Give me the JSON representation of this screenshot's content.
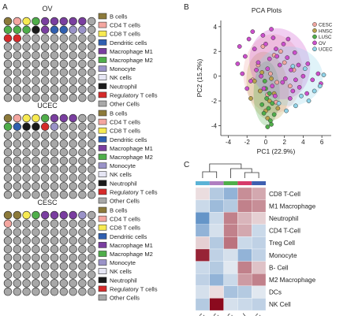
{
  "panel_labels": {
    "a": "A",
    "b": "B",
    "c": "C"
  },
  "cell_type_colors": {
    "B cells": "#8c7a3a",
    "CD4 T cells": "#f4a6a0",
    "CD8 T cells": "#f7ea52",
    "Dendritic cells": "#2f5fb0",
    "Macrophage M1": "#7a3ea0",
    "Macrophage M2": "#4fae4a",
    "Monocyte": "#9a93c8",
    "NK cells": "#e6e6f4",
    "Neutrophil": "#1a1a1a",
    "Regulatory T cells": "#d62a2a",
    "Other Cells": "#a8a8a8"
  },
  "chart_data": [
    {
      "type": "waffle",
      "panel": "A",
      "grid": {
        "rows": 10,
        "cols": 10
      },
      "legend_labels": [
        "B cells",
        "CD4 T cells",
        "CD8 T cells",
        "Dendritic cells",
        "Macrophage M1",
        "Macrophage M2",
        "Monocyte",
        "NK cells",
        "Neutrophil",
        "Regulatory T cells",
        "Other Cells"
      ],
      "waffles": [
        {
          "title": "OV",
          "cells": [
            [
              "B cells",
              "CD4 T cells",
              "CD8 T cells",
              "Macrophage M2",
              "Macrophage M1",
              "Macrophage M1",
              "Macrophage M1",
              "Macrophage M1",
              "Macrophage M1",
              "Other Cells"
            ],
            [
              "Macrophage M2",
              "Macrophage M2",
              "Macrophage M2",
              "Neutrophil",
              "Macrophage M1",
              "Dendritic cells",
              "Dendritic cells",
              "Monocyte",
              "Monocyte",
              "Other Cells"
            ],
            [
              "Regulatory T cells",
              "Regulatory T cells",
              "Other Cells",
              "Other Cells",
              "Other Cells",
              "Other Cells",
              "Other Cells",
              "Other Cells",
              "Other Cells",
              "Other Cells"
            ]
          ]
        },
        {
          "title": "UCEC",
          "cells": [
            [
              "B cells",
              "CD4 T cells",
              "CD8 T cells",
              "CD8 T cells",
              "Macrophage M2",
              "Macrophage M1",
              "Macrophage M1",
              "Macrophage M1",
              "Other Cells",
              "Other Cells"
            ],
            [
              "Macrophage M2",
              "Dendritic cells",
              "Neutrophil",
              "Neutrophil",
              "Regulatory T cells",
              "Monocyte",
              "Other Cells",
              "Other Cells",
              "Other Cells",
              "Other Cells"
            ]
          ]
        },
        {
          "title": "CESC",
          "cells": [
            [
              "B cells",
              "B cells",
              "CD8 T cells",
              "Macrophage M2",
              "Macrophage M1",
              "Macrophage M1",
              "Macrophage M1",
              "Macrophage M1",
              "Monocyte",
              "Other Cells"
            ],
            [
              "CD4 T cells",
              "Other Cells",
              "Other Cells",
              "Other Cells",
              "Other Cells",
              "Other Cells",
              "Other Cells",
              "Other Cells",
              "Other Cells",
              "Other Cells"
            ]
          ]
        }
      ]
    },
    {
      "type": "scatter",
      "panel": "B",
      "title": "PCA Plots",
      "xlabel": "PC1 (22.9%)",
      "ylabel": "PC2 (15.2%)",
      "xlim": [
        -4.8,
        7
      ],
      "ylim": [
        -4.8,
        4.5
      ],
      "xticks": [
        -4,
        -2,
        0,
        2,
        4,
        6
      ],
      "yticks": [
        -4,
        -2,
        0,
        2,
        4
      ],
      "legend_position": "top-right",
      "series": [
        {
          "name": "CESC",
          "color": "#f0a6a0",
          "ellipse": {
            "cx": 0.8,
            "cy": 0.2,
            "rx": 3.2,
            "ry": 3.2,
            "angle": 0
          },
          "points": [
            [
              0.5,
              0.2
            ],
            [
              1.2,
              -0.5
            ],
            [
              -0.8,
              0.9
            ],
            [
              2.0,
              1.1
            ],
            [
              0.2,
              -1.5
            ],
            [
              1.6,
              2.0
            ],
            [
              -1.4,
              -0.3
            ],
            [
              2.6,
              -0.8
            ],
            [
              0.9,
              1.7
            ],
            [
              -0.3,
              2.4
            ],
            [
              1.1,
              -2.1
            ],
            [
              3.0,
              0.5
            ]
          ]
        },
        {
          "name": "HNSC",
          "color": "#b9a24c",
          "ellipse": {
            "cx": 0.2,
            "cy": -0.8,
            "rx": 2.2,
            "ry": 2.8,
            "angle": -10
          },
          "points": [
            [
              -0.6,
              -1.2
            ],
            [
              0.4,
              -2.0
            ],
            [
              -1.2,
              -0.4
            ],
            [
              0.9,
              -1.4
            ],
            [
              0.0,
              -2.8
            ],
            [
              -0.4,
              0.3
            ],
            [
              1.3,
              -2.6
            ],
            [
              0.6,
              -0.2
            ],
            [
              -1.6,
              -1.8
            ],
            [
              0.2,
              -3.4
            ]
          ]
        },
        {
          "name": "LUSC",
          "color": "#4fae4a",
          "ellipse": {
            "cx": 0.1,
            "cy": -1.4,
            "rx": 1.4,
            "ry": 2.6,
            "angle": 0
          },
          "points": [
            [
              0.1,
              -1.8
            ],
            [
              0.3,
              -2.6
            ],
            [
              -0.2,
              -3.0
            ],
            [
              0.5,
              -3.6
            ],
            [
              0.0,
              -1.0
            ],
            [
              0.7,
              -2.2
            ],
            [
              -0.4,
              -2.3
            ],
            [
              0.2,
              -4.1
            ],
            [
              0.6,
              -3.9
            ],
            [
              -0.1,
              -0.4
            ],
            [
              0.4,
              -1.4
            ],
            [
              0.9,
              -3.1
            ]
          ]
        },
        {
          "name": "OV",
          "color": "#cc4fcc",
          "ellipse": {
            "cx": 1.5,
            "cy": 1.0,
            "rx": 3.2,
            "ry": 2.9,
            "angle": -15
          },
          "points": [
            [
              -2.8,
              2.4
            ],
            [
              -2.2,
              1.6
            ],
            [
              -1.8,
              3.0
            ],
            [
              -1.2,
              2.2
            ],
            [
              -0.8,
              1.1
            ],
            [
              -0.3,
              3.3
            ],
            [
              0.0,
              2.6
            ],
            [
              0.4,
              1.4
            ],
            [
              0.8,
              3.1
            ],
            [
              1.1,
              2.2
            ],
            [
              1.5,
              0.9
            ],
            [
              1.9,
              2.6
            ],
            [
              2.3,
              1.5
            ],
            [
              2.7,
              0.5
            ],
            [
              3.1,
              1.9
            ],
            [
              3.5,
              0.9
            ],
            [
              4.0,
              0.0
            ],
            [
              4.5,
              1.0
            ],
            [
              5.0,
              -0.3
            ],
            [
              5.6,
              0.2
            ],
            [
              -2.5,
              0.2
            ],
            [
              -1.6,
              -0.4
            ],
            [
              -0.5,
              0.0
            ],
            [
              0.7,
              -0.8
            ],
            [
              1.8,
              -0.5
            ],
            [
              2.9,
              -1.2
            ],
            [
              3.6,
              -0.9
            ],
            [
              -2.0,
              -1.0
            ],
            [
              -1.0,
              0.5
            ],
            [
              0.2,
              0.6
            ],
            [
              1.2,
              1.6
            ],
            [
              2.1,
              -0.2
            ],
            [
              3.2,
              -0.3
            ],
            [
              4.4,
              -1.4
            ],
            [
              -1.4,
              3.6
            ],
            [
              0.6,
              3.8
            ],
            [
              2.4,
              3.0
            ],
            [
              -3.0,
              1.0
            ],
            [
              1.0,
              -1.6
            ],
            [
              2.6,
              -1.8
            ],
            [
              -0.2,
              -1.0
            ],
            [
              5.9,
              -0.6
            ]
          ]
        },
        {
          "name": "UCEC",
          "color": "#8fd3e8",
          "ellipse": {
            "cx": 2.5,
            "cy": 0.0,
            "rx": 3.6,
            "ry": 2.4,
            "angle": 5
          },
          "points": [
            [
              3.8,
              -1.6
            ],
            [
              4.6,
              -2.0
            ],
            [
              5.2,
              -1.2
            ],
            [
              3.2,
              -2.4
            ],
            [
              2.2,
              -2.8
            ],
            [
              5.8,
              -0.8
            ],
            [
              4.2,
              0.6
            ],
            [
              1.4,
              -2.2
            ],
            [
              6.2,
              0.1
            ],
            [
              2.9,
              0.8
            ]
          ]
        }
      ]
    },
    {
      "type": "heatmap",
      "panel": "C",
      "columns": [
        "CESC",
        "HNSC",
        "LUSC",
        "OV",
        "UCEC"
      ],
      "column_colors": [
        "#5bb3d6",
        "#b07ec0",
        "#4fae4a",
        "#d63a6a",
        "#3e5fb0"
      ],
      "rows": [
        "CD8 T-Cell",
        "M1 Macrophage",
        "Neutrophil",
        "CD4 T-Cell",
        "Treg Cell",
        "Monocyte",
        "B- Cell",
        "M2 Macrophage",
        "DCs",
        "NK Cell"
      ],
      "values": [
        [
          0.2,
          -0.6,
          -0.9,
          0.8,
          0.6
        ],
        [
          -0.4,
          -0.8,
          -0.6,
          0.9,
          0.8
        ],
        [
          -1.3,
          -0.4,
          0.9,
          0.5,
          0.3
        ],
        [
          -0.9,
          -0.3,
          0.9,
          0.6,
          -0.4
        ],
        [
          0.3,
          -0.6,
          1.0,
          -0.4,
          -0.5
        ],
        [
          1.6,
          -0.5,
          -0.3,
          -0.9,
          -0.5
        ],
        [
          -0.4,
          -0.6,
          -0.2,
          0.9,
          0.4
        ],
        [
          -0.5,
          -0.9,
          -0.4,
          0.7,
          0.9
        ],
        [
          -0.3,
          0.2,
          -0.7,
          -0.6,
          -0.2
        ],
        [
          -0.6,
          1.8,
          -0.3,
          -0.4,
          -0.5
        ]
      ],
      "color_scale": {
        "low": "#2d6fb6",
        "mid": "#f7f7f7",
        "high": "#8b0a1e"
      },
      "dendrogram": "top"
    }
  ]
}
